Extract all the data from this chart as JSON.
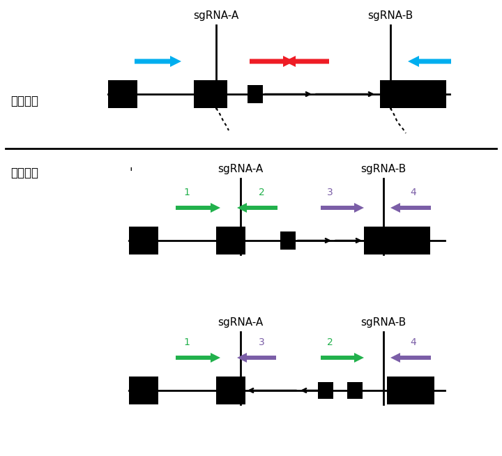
{
  "white": "#FFFFFF",
  "black": "#000000",
  "cyan": "#00AEEF",
  "red": "#EE1C25",
  "green": "#22B14C",
  "purple": "#7B5EA7",
  "sgRNA_A": "sgRNA-A",
  "sgRNA_B": "sgRNA-B",
  "label_deletion": "检测敲除",
  "label_inversion": "检测颠倒",
  "fig_w": 7.2,
  "fig_h": 6.54,
  "dpi": 100
}
